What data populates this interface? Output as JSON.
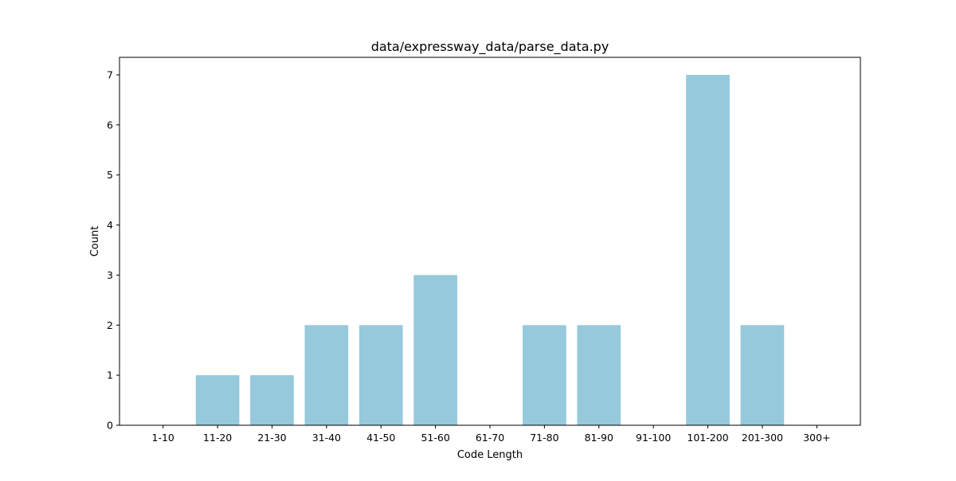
{
  "chart_data": {
    "type": "bar",
    "title": "data/expressway_data/parse_data.py",
    "xlabel": "Code Length",
    "ylabel": "Count",
    "categories": [
      "1-10",
      "11-20",
      "21-30",
      "31-40",
      "41-50",
      "51-60",
      "61-70",
      "71-80",
      "81-90",
      "91-100",
      "101-200",
      "201-300",
      "300+"
    ],
    "values": [
      0,
      1,
      1,
      2,
      2,
      3,
      0,
      2,
      2,
      0,
      7,
      2,
      0
    ],
    "ylim": [
      0,
      7.35
    ],
    "yticks": [
      0,
      1,
      2,
      3,
      4,
      5,
      6,
      7
    ],
    "bar_color": "#96c9dc",
    "grid": false,
    "legend": null
  }
}
